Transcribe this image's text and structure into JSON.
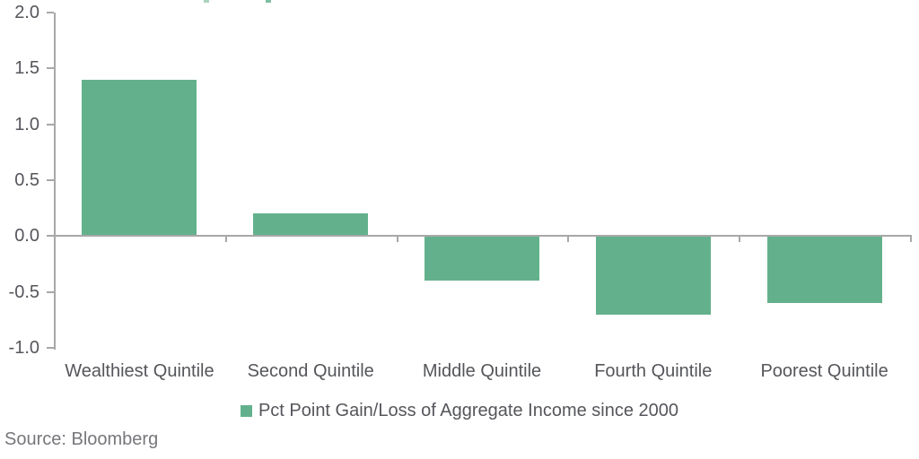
{
  "chart_data": {
    "type": "bar",
    "categories": [
      "Wealthiest Quintile",
      "Second Quintile",
      "Middle Quintile",
      "Fourth Quintile",
      "Poorest Quintile"
    ],
    "values": [
      1.4,
      0.2,
      -0.4,
      -0.7,
      -0.6
    ],
    "series_name": "Pct Point Gain/Loss of Aggregate Income since 2000",
    "title": "",
    "xlabel": "",
    "ylabel": "",
    "ylim": [
      -1.0,
      2.0
    ],
    "y_ticks": [
      2.0,
      1.5,
      1.0,
      0.5,
      0.0,
      -0.5,
      -1.0
    ],
    "y_tick_labels": [
      "2.0",
      "1.5",
      "1.0",
      "0.5",
      "0.0",
      "-0.5",
      "-1.0"
    ],
    "grid": false,
    "legend_position": "bottom"
  },
  "legend": {
    "label": "Pct Point Gain/Loss of Aggregate Income since 2000"
  },
  "source": {
    "text": "Source: Bloomberg"
  },
  "colors": {
    "bar": "#63b18c",
    "axis": "#a8a8a8",
    "label_text": "#55565b",
    "source_text": "#76777b",
    "title_fragment_left": "#a9d3bd",
    "title_fragment_right": "#7dbfa0"
  }
}
